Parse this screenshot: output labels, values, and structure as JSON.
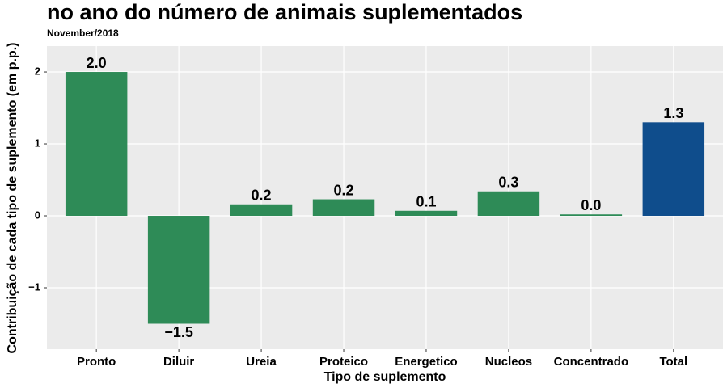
{
  "chart_data": {
    "type": "bar",
    "title": "no ano do número de animais suplementados",
    "subtitle": "November/2018",
    "x_label": "Tipo de suplemento",
    "y_label": "Contribuição de cada tipo de suplemento (em p.p.)",
    "categories": [
      "Pronto",
      "Diluir",
      "Ureia",
      "Proteico",
      "Energetico",
      "Nucleos",
      "Concentrado",
      "Total"
    ],
    "values": [
      2.0,
      -1.5,
      0.16,
      0.23,
      0.07,
      0.34,
      0.02,
      1.3
    ],
    "value_labels": [
      "2.0",
      "−1.5",
      "0.2",
      "0.2",
      "0.1",
      "0.3",
      "0.0",
      "1.3"
    ],
    "colors": [
      "#2e8b57",
      "#2e8b57",
      "#2e8b57",
      "#2e8b57",
      "#2e8b57",
      "#2e8b57",
      "#2e8b57",
      "#0f4d8c"
    ],
    "ylim": [
      -1.854,
      2.36
    ],
    "yticks": [
      {
        "value": -1,
        "label": "−1"
      },
      0,
      1,
      2
    ],
    "grid": true
  }
}
